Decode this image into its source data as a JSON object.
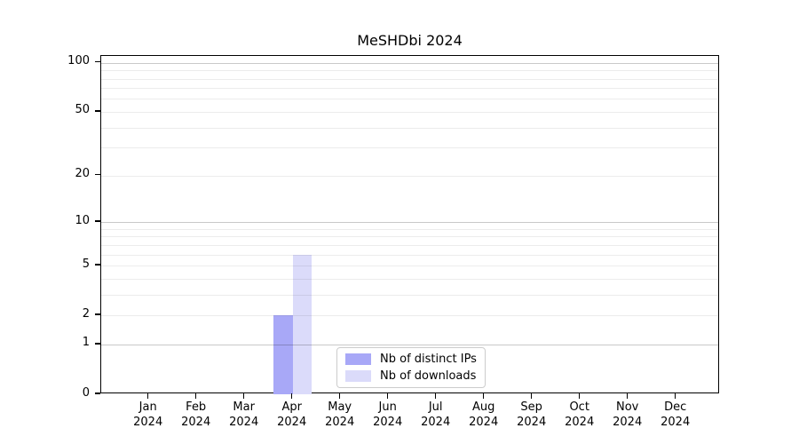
{
  "chart_data": {
    "type": "bar",
    "title": "MeSHDbi 2024",
    "categories": [
      "Jan 2024",
      "Feb 2024",
      "Mar 2024",
      "Apr 2024",
      "May 2024",
      "Jun 2024",
      "Jul 2024",
      "Aug 2024",
      "Sep 2024",
      "Oct 2024",
      "Nov 2024",
      "Dec 2024"
    ],
    "series": [
      {
        "name": "Nb of distinct IPs",
        "color": "#a8a8f7",
        "values": [
          0,
          0,
          0,
          2,
          0,
          0,
          0,
          0,
          0,
          0,
          0,
          0
        ]
      },
      {
        "name": "Nb of downloads",
        "color": "#dbdbfa",
        "values": [
          0,
          0,
          0,
          6,
          0,
          0,
          0,
          0,
          0,
          0,
          0,
          0
        ]
      }
    ],
    "xlabel": "",
    "ylabel": "",
    "yscale": "log1p",
    "ylim": [
      0,
      110
    ],
    "yticks": [
      0,
      1,
      2,
      5,
      10,
      20,
      50,
      100
    ],
    "grid": true,
    "grid_major_values": [
      1,
      10,
      100
    ],
    "grid_minor_values": [
      2,
      3,
      4,
      5,
      6,
      7,
      8,
      9,
      20,
      30,
      40,
      50,
      60,
      70,
      80,
      90
    ],
    "legend_position": "inside lower-center"
  },
  "colors": {
    "bar_distinct_ips": "#a8a8f7",
    "bar_downloads": "#dbdbfa",
    "grid_major": "#c9c9c9",
    "grid_minor": "#ececec",
    "axis": "#000000",
    "legend_border": "#cccccc",
    "background": "#ffffff"
  }
}
